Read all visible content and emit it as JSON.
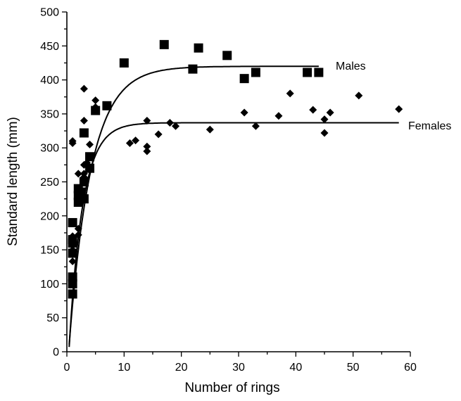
{
  "chart_data": {
    "type": "scatter",
    "xlabel": "Number of rings",
    "ylabel": "Standard length (mm)",
    "xlim": [
      0,
      60
    ],
    "ylim": [
      0,
      500
    ],
    "x_ticks": [
      0,
      10,
      20,
      30,
      40,
      50,
      60
    ],
    "y_ticks": [
      0,
      50,
      100,
      150,
      200,
      250,
      300,
      350,
      400,
      450,
      500
    ],
    "grid": false,
    "series": [
      {
        "name": "Males",
        "marker": "square",
        "points": [
          [
            1,
            85
          ],
          [
            1,
            100
          ],
          [
            1,
            110
          ],
          [
            1,
            145
          ],
          [
            1,
            160
          ],
          [
            1,
            165
          ],
          [
            1,
            190
          ],
          [
            2,
            220
          ],
          [
            2,
            230
          ],
          [
            2,
            240
          ],
          [
            2.5,
            235
          ],
          [
            3,
            225
          ],
          [
            3,
            250
          ],
          [
            3,
            322
          ],
          [
            4,
            270
          ],
          [
            4,
            287
          ],
          [
            5,
            355
          ],
          [
            7,
            362
          ],
          [
            10,
            425
          ],
          [
            17,
            452
          ],
          [
            22,
            416
          ],
          [
            23,
            447
          ],
          [
            28,
            436
          ],
          [
            31,
            402
          ],
          [
            33,
            411
          ],
          [
            42,
            411
          ],
          [
            44,
            411
          ]
        ],
        "fit": {
          "asymptote": 420,
          "x_end": 44
        }
      },
      {
        "name": "Females",
        "marker": "diamond",
        "points": [
          [
            1,
            310
          ],
          [
            1,
            307
          ],
          [
            1,
            133
          ],
          [
            1,
            150
          ],
          [
            1,
            158
          ],
          [
            1,
            170
          ],
          [
            2,
            262
          ],
          [
            2,
            181
          ],
          [
            2,
            172
          ],
          [
            2,
            237
          ],
          [
            2.5,
            232
          ],
          [
            3,
            387
          ],
          [
            3,
            340
          ],
          [
            3,
            275
          ],
          [
            3,
            262
          ],
          [
            3,
            257
          ],
          [
            3.5,
            278
          ],
          [
            4,
            305
          ],
          [
            5,
            370
          ],
          [
            5,
            360
          ],
          [
            11,
            307
          ],
          [
            12,
            311
          ],
          [
            14,
            340
          ],
          [
            14,
            302
          ],
          [
            14,
            295
          ],
          [
            16,
            320
          ],
          [
            18,
            337
          ],
          [
            19,
            332
          ],
          [
            25,
            327
          ],
          [
            31,
            352
          ],
          [
            33,
            332
          ],
          [
            37,
            347
          ],
          [
            39,
            380
          ],
          [
            43,
            356
          ],
          [
            45,
            342
          ],
          [
            45,
            322
          ],
          [
            46,
            352
          ],
          [
            51,
            377
          ],
          [
            58,
            357
          ]
        ],
        "fit": {
          "asymptote": 337,
          "x_end": 58
        }
      }
    ]
  }
}
